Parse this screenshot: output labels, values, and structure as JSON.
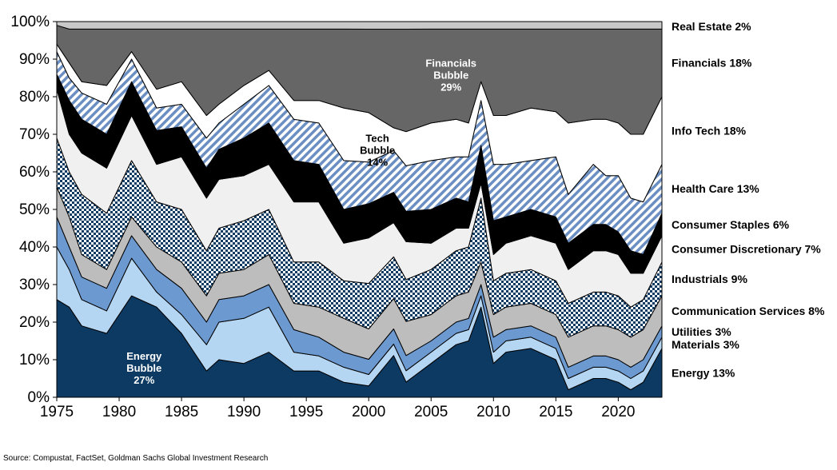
{
  "chart_data": {
    "type": "area",
    "stacked": true,
    "normalized": true,
    "title": "",
    "xlabel": "",
    "ylabel": "",
    "xlim": [
      1975,
      2023.5
    ],
    "ylim": [
      0,
      100
    ],
    "x_ticks": [
      1975,
      1980,
      1985,
      1990,
      1995,
      2000,
      2005,
      2010,
      2015,
      2020
    ],
    "y_ticks": [
      0,
      10,
      20,
      30,
      40,
      50,
      60,
      70,
      80,
      90,
      100
    ],
    "y_tick_suffix": "%",
    "grid": false,
    "x": [
      1975,
      1976,
      1977,
      1979,
      1981,
      1983,
      1985,
      1987,
      1988,
      1990,
      1992,
      1994,
      1996,
      1998,
      2000,
      2002,
      2003,
      2005,
      2007,
      2008,
      2009,
      2010,
      2011,
      2013,
      2015,
      2016,
      2018,
      2019,
      2020,
      2021,
      2022,
      2023.5
    ],
    "series": [
      {
        "name": "Energy 13%",
        "color": "#0d3a63",
        "pattern": "solid",
        "values": [
          26,
          24,
          19,
          17,
          27,
          24,
          17,
          7,
          10,
          9,
          12,
          7,
          7,
          4,
          3,
          11,
          4,
          9,
          14,
          15,
          24,
          9,
          12,
          13,
          10,
          2,
          5,
          5,
          4,
          2,
          4,
          13
        ]
      },
      {
        "name": "Materials 3%",
        "color": "#b5d6f2",
        "pattern": "solid",
        "values": [
          14,
          10,
          7,
          6,
          10,
          4,
          5,
          7,
          10,
          12,
          12,
          5,
          4,
          4,
          3,
          3,
          3,
          3,
          3,
          3,
          3,
          3,
          3,
          3,
          3,
          3,
          3,
          3,
          3,
          3,
          3,
          3
        ]
      },
      {
        "name": "Utilities 3%",
        "color": "#6c9ad0",
        "pattern": "solid",
        "values": [
          8,
          6,
          6,
          6,
          6,
          6,
          7,
          6,
          6,
          6,
          6,
          6,
          5,
          4,
          4,
          4,
          4,
          3,
          3,
          3,
          3,
          4,
          3,
          3,
          3,
          3,
          3,
          3,
          3,
          3,
          3,
          3
        ]
      },
      {
        "name": "Communication Services 8%",
        "color": "#bdbdbd",
        "pattern": "solid",
        "values": [
          8,
          8,
          6,
          5,
          5,
          6,
          7,
          7,
          7,
          7,
          8,
          7,
          8,
          9,
          8,
          8,
          9,
          7,
          7,
          7,
          6,
          6,
          6,
          6,
          6,
          8,
          8,
          8,
          8,
          8,
          8,
          8
        ]
      },
      {
        "name": "Industrials 9%",
        "color": "#0d3a63",
        "pattern": "check",
        "values": [
          13,
          12,
          16,
          15,
          15,
          12,
          14,
          12,
          12,
          13,
          12,
          11,
          12,
          10,
          12,
          11,
          11,
          12,
          12,
          12,
          17,
          9,
          9,
          9,
          9,
          9,
          9,
          9,
          9,
          8,
          8,
          9
        ]
      },
      {
        "name": "Consumer Discretionary 7%",
        "color": "#f0f0f0",
        "pattern": "solid",
        "values": [
          13,
          10,
          11,
          12,
          12,
          10,
          14,
          14,
          13,
          12,
          12,
          16,
          16,
          10,
          12,
          9,
          10,
          7,
          6,
          5,
          4,
          7,
          8,
          9,
          10,
          9,
          11,
          11,
          11,
          9,
          7,
          7
        ]
      },
      {
        "name": "Consumer Staples 6%",
        "color": "#000000",
        "pattern": "solid",
        "values": [
          4,
          9,
          9,
          9,
          9,
          9,
          8,
          8,
          8,
          10,
          11,
          11,
          10,
          9,
          9,
          8,
          8,
          9,
          8,
          7,
          10,
          9,
          7,
          7,
          7,
          7,
          7,
          7,
          6,
          6,
          5,
          6
        ]
      },
      {
        "name": "Health Care 13%",
        "color": "#6b8fc2",
        "pattern": "diagonal",
        "values": [
          6,
          6,
          7,
          8,
          6,
          6,
          6,
          8,
          7,
          9,
          10,
          11,
          11,
          13,
          11,
          11,
          12,
          13,
          11,
          12,
          12,
          15,
          14,
          13,
          16,
          13,
          16,
          13,
          15,
          14,
          14,
          13
        ]
      },
      {
        "name": "Info Tech 18%",
        "color": "#ffffff",
        "pattern": "solid",
        "values": [
          2,
          4,
          3,
          5,
          2,
          5,
          6,
          6,
          5,
          5,
          4,
          5,
          6,
          14,
          13,
          6,
          9,
          10,
          10,
          9,
          5,
          13,
          13,
          14,
          12,
          19,
          12,
          15,
          14,
          17,
          18,
          18
        ]
      },
      {
        "name": "Financials 18%",
        "color": "#666666",
        "pattern": "solid",
        "values": [
          5,
          9,
          14,
          15,
          6,
          16,
          14,
          23,
          20,
          15,
          11,
          19,
          19,
          21,
          22,
          26,
          27,
          25,
          24,
          25,
          14,
          23,
          23,
          21,
          22,
          25,
          24,
          24,
          25,
          28,
          28,
          18
        ]
      },
      {
        "name": "Real Estate 2%",
        "color": "#c8c8c8",
        "pattern": "solid",
        "values": [
          1,
          2,
          2,
          2,
          2,
          2,
          2,
          2,
          2,
          2,
          2,
          2,
          2,
          2,
          2,
          2,
          2,
          2,
          2,
          2,
          2,
          2,
          2,
          2,
          2,
          2,
          2,
          2,
          2,
          2,
          2,
          2
        ]
      }
    ],
    "annotations": [
      {
        "lines": [
          "Energy",
          "Bubble",
          "27%"
        ],
        "x": 1982,
        "y": 10,
        "color": "#ffffff"
      },
      {
        "lines": [
          "Tech",
          "Bubble",
          "14%"
        ],
        "x": 2000.7,
        "y": 68,
        "color": "#000000"
      },
      {
        "lines": [
          "Financials",
          "Bubble",
          "29%"
        ],
        "x": 2006.6,
        "y": 88,
        "color": "#ffffff"
      }
    ],
    "source": "Source: Compustat, FactSet, Goldman Sachs Global Investment Research"
  }
}
